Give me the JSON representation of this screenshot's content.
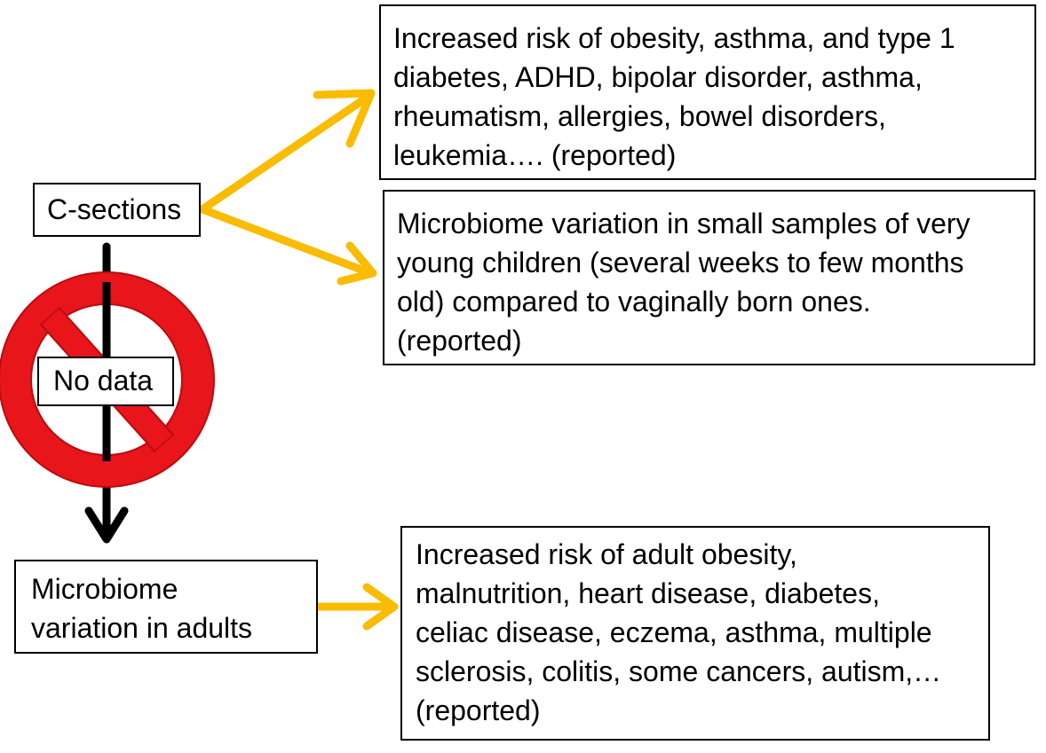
{
  "colors": {
    "arrow_yellow": "#F9BC00",
    "arrow_black": "#000000",
    "prohibition_red": "#E8151B",
    "prohibition_outline": "#B80C10",
    "box_border": "#000000",
    "text": "#000000"
  },
  "nodes": {
    "csections": {
      "lines": [
        "C-sections"
      ]
    },
    "risk_child": {
      "lines": [
        "Increased risk of obesity, asthma, and type 1",
        "diabetes, ADHD, bipolar disorder, asthma,",
        "rheumatism, allergies, bowel disorders,",
        "leukemia…. (reported)"
      ]
    },
    "microbiome_child": {
      "lines": [
        "Microbiome variation in small samples of very",
        "young children (several weeks to few months",
        "old) compared to vaginally born ones.",
        "(reported)"
      ]
    },
    "nodata": {
      "lines": [
        "No data"
      ]
    },
    "microbiome_adult": {
      "lines": [
        "Microbiome",
        "variation in adults"
      ]
    },
    "risk_adult": {
      "lines": [
        "Increased risk of adult obesity,",
        "malnutrition, heart disease, diabetes,",
        "celiac disease, eczema, asthma, multiple",
        "sclerosis, colitis, some cancers, autism,…",
        "(reported)"
      ]
    }
  },
  "icons": {
    "prohibition": "no-entry-circle-icon"
  }
}
